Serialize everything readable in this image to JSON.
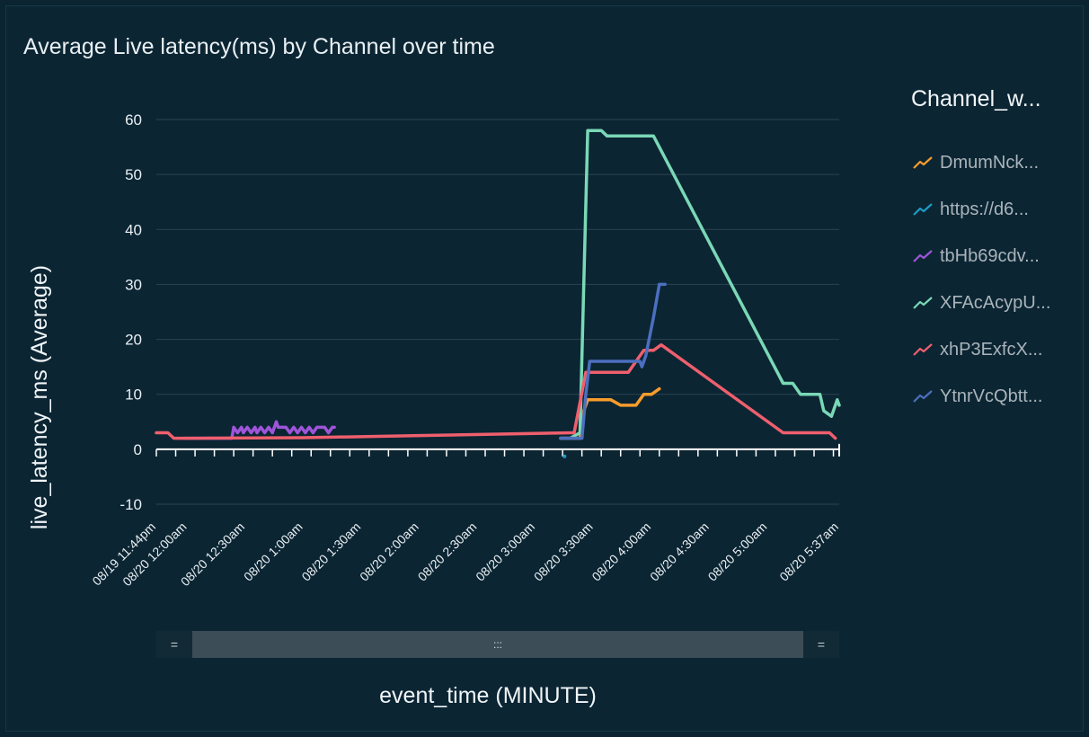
{
  "chart_data": {
    "type": "line",
    "title": "Average Live latency(ms) by Channel over time",
    "xlabel": "event_time (MINUTE)",
    "ylabel": "live_latency_ms (Average)",
    "ylim": [
      -10,
      60
    ],
    "yticks": [
      -10,
      0,
      10,
      20,
      30,
      40,
      50,
      60
    ],
    "xlim": [
      -16,
      337
    ],
    "x_unit": "minutes after 08/20 12:00am",
    "x_ticks": [
      {
        "label": "08/19 11:44pm",
        "x": -16
      },
      {
        "label": "08/20 12:00am",
        "x": 0
      },
      {
        "label": "08/20 12:30am",
        "x": 30
      },
      {
        "label": "08/20 1:00am",
        "x": 60
      },
      {
        "label": "08/20 1:30am",
        "x": 90
      },
      {
        "label": "08/20 2:00am",
        "x": 120
      },
      {
        "label": "08/20 2:30am",
        "x": 150
      },
      {
        "label": "08/20 3:00am",
        "x": 180
      },
      {
        "label": "08/20 3:30am",
        "x": 210
      },
      {
        "label": "08/20 4:00am",
        "x": 240
      },
      {
        "label": "08/20 4:30am",
        "x": 270
      },
      {
        "label": "08/20 5:00am",
        "x": 300
      },
      {
        "label": "08/20 5:37am",
        "x": 337
      }
    ],
    "legend_title": "Channel_w...",
    "series": [
      {
        "name": "DmumNck...",
        "color": "#f89c2b",
        "points": [
          [
            193,
            2
          ],
          [
            201,
            2
          ],
          [
            203,
            2
          ],
          [
            205,
            7
          ],
          [
            207,
            9
          ],
          [
            219,
            9
          ],
          [
            224,
            8
          ],
          [
            232,
            8
          ],
          [
            236,
            10
          ],
          [
            240,
            10
          ],
          [
            244,
            11
          ]
        ]
      },
      {
        "name": "https://d6...",
        "color": "#1f9bc5",
        "points": [
          [
            195,
            -1.3
          ]
        ]
      },
      {
        "name": "tbHb69cdv...",
        "color": "#9e55d9",
        "points": [
          [
            -2,
            2
          ],
          [
            21,
            2
          ],
          [
            23,
            2
          ],
          [
            24,
            4
          ],
          [
            26,
            3
          ],
          [
            28,
            4
          ],
          [
            29,
            3
          ],
          [
            31,
            4
          ],
          [
            33,
            3
          ],
          [
            35,
            4
          ],
          [
            36,
            3
          ],
          [
            38,
            4
          ],
          [
            40,
            3
          ],
          [
            42,
            4
          ],
          [
            44,
            3
          ],
          [
            46,
            5
          ],
          [
            47,
            4
          ],
          [
            49,
            4
          ],
          [
            51,
            4
          ],
          [
            53,
            3
          ],
          [
            55,
            4
          ],
          [
            57,
            3
          ],
          [
            59,
            4
          ],
          [
            61,
            3
          ],
          [
            63,
            4
          ],
          [
            65,
            3
          ],
          [
            67,
            4
          ],
          [
            69,
            4
          ],
          [
            71,
            4
          ],
          [
            73,
            3
          ],
          [
            75,
            4
          ],
          [
            76,
            4
          ]
        ]
      },
      {
        "name": "XFAcAcypU...",
        "color": "#7ad8b6",
        "points": [
          [
            193,
            2
          ],
          [
            198,
            2
          ],
          [
            203,
            3
          ],
          [
            207,
            58
          ],
          [
            214,
            58
          ],
          [
            217,
            57
          ],
          [
            220,
            57
          ],
          [
            236,
            57
          ],
          [
            241,
            57
          ],
          [
            308,
            12
          ],
          [
            313,
            12
          ],
          [
            317,
            10
          ],
          [
            327,
            10
          ],
          [
            329,
            7
          ],
          [
            333,
            6
          ],
          [
            336,
            9
          ],
          [
            337,
            8
          ]
        ]
      },
      {
        "name": "xhP3ExfcX...",
        "color": "#ef5f6d",
        "points": [
          [
            -16,
            3
          ],
          [
            -10,
            3
          ],
          [
            -7,
            2
          ],
          [
            0,
            2
          ],
          [
            60,
            2.1
          ],
          [
            120,
            2.5
          ],
          [
            200,
            3
          ],
          [
            206,
            14
          ],
          [
            222,
            14
          ],
          [
            228,
            14
          ],
          [
            236,
            18
          ],
          [
            241,
            18
          ],
          [
            245,
            19
          ],
          [
            308,
            3
          ],
          [
            325,
            3
          ],
          [
            332,
            3
          ],
          [
            335,
            2
          ]
        ]
      },
      {
        "name": "YtnrVcQbtt...",
        "color": "#4c6fbf",
        "points": [
          [
            193,
            2
          ],
          [
            200,
            2
          ],
          [
            204,
            2
          ],
          [
            206,
            10
          ],
          [
            208,
            16
          ],
          [
            215,
            16
          ],
          [
            234,
            16
          ],
          [
            235,
            15
          ],
          [
            237,
            17
          ],
          [
            241,
            24
          ],
          [
            244,
            30
          ],
          [
            247,
            30
          ]
        ]
      }
    ]
  },
  "scrollbar": {
    "left_handle": "=",
    "thumb_grip": ":::",
    "right_handle": "="
  },
  "icons": {
    "legend_swatch": "line-swatch-icon"
  }
}
